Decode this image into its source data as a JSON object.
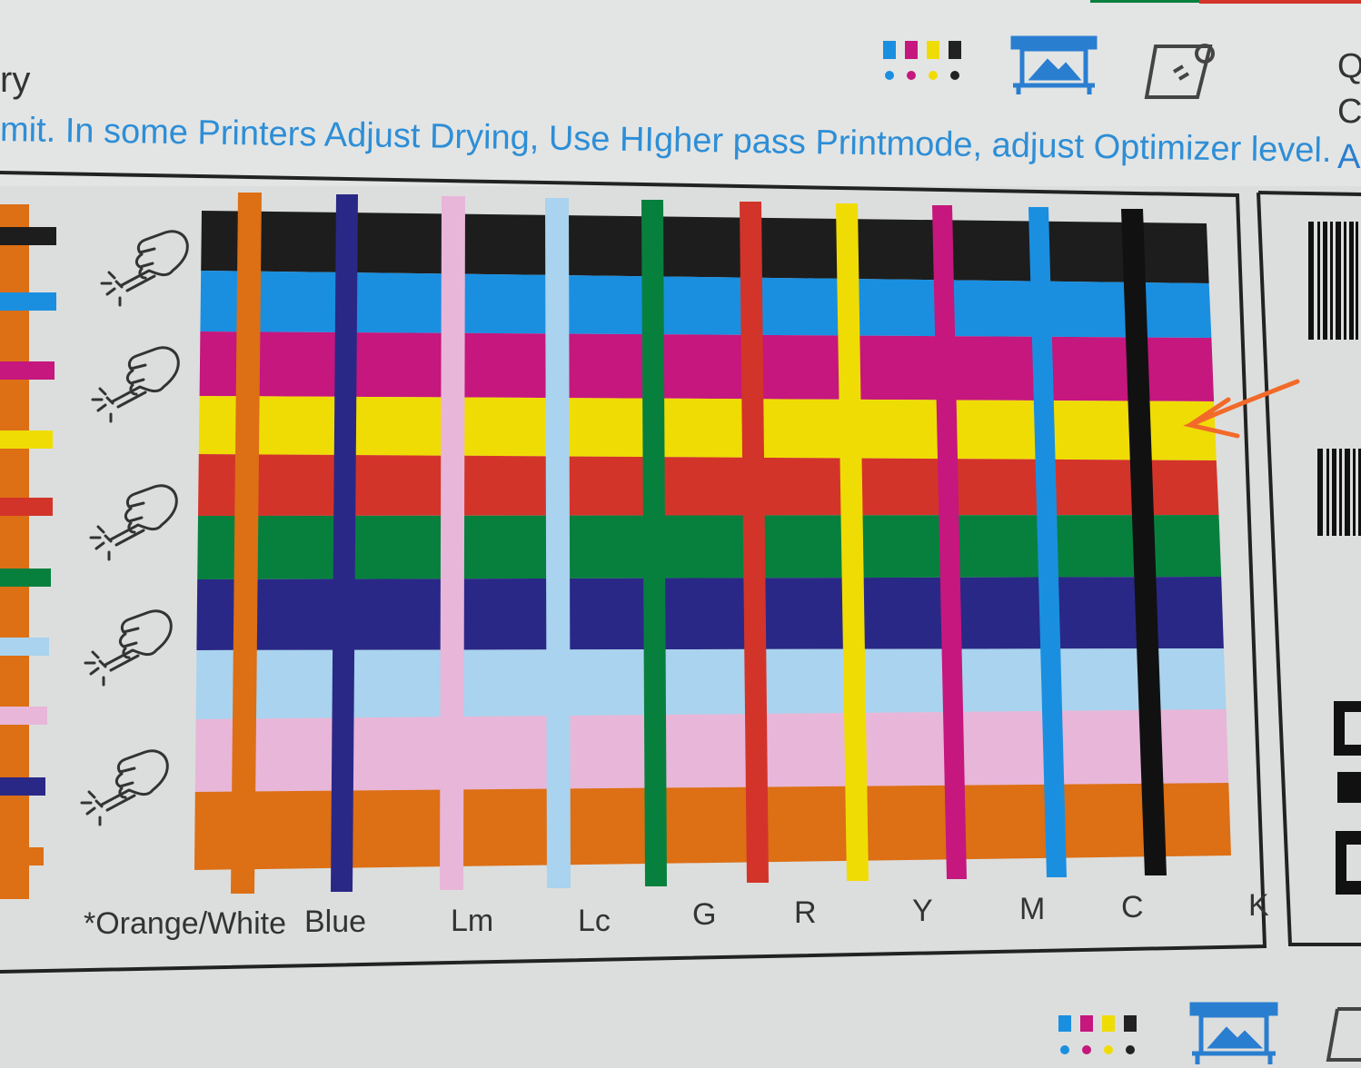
{
  "header": {
    "fragment_left": "ry",
    "instruction": "mit. In some Printers Adjust Drying, Use HIgher pass Printmode,  adjust Optimizer level.",
    "right_fragments": [
      "Q",
      "C",
      "Al"
    ]
  },
  "icons": [
    "ink-cartridges-icon",
    "printer-image-icon",
    "media-roll-icon"
  ],
  "chart": {
    "row_colors": [
      "#1d1d1d",
      "#1a8fe0",
      "#c5177e",
      "#f0dc05",
      "#d3342a",
      "#07803e",
      "#2a2886",
      "#a9d3ee",
      "#e8b6d8",
      "#dd6f15"
    ],
    "column_colors": [
      "#dd6f15",
      "#2a2886",
      "#e8b6d8",
      "#a9d3ee",
      "#07803e",
      "#d3342a",
      "#f0dc05",
      "#c5177e",
      "#1a8fe0",
      "#111111"
    ],
    "left_strip_colors": [
      "#1d1d1d",
      "#1a8fe0",
      "#c5177e",
      "#f0dc05",
      "#d3342a",
      "#07803e",
      "#a9d3ee",
      "#e8b6d8",
      "#2a2886",
      "#dd6f15"
    ],
    "column_labels": [
      "*Orange/White",
      "Blue",
      "Lm",
      "Lc",
      "G",
      "R",
      "Y",
      "M",
      "C",
      "K"
    ]
  },
  "annotation": {
    "arrow_color": "#f26a2a"
  }
}
